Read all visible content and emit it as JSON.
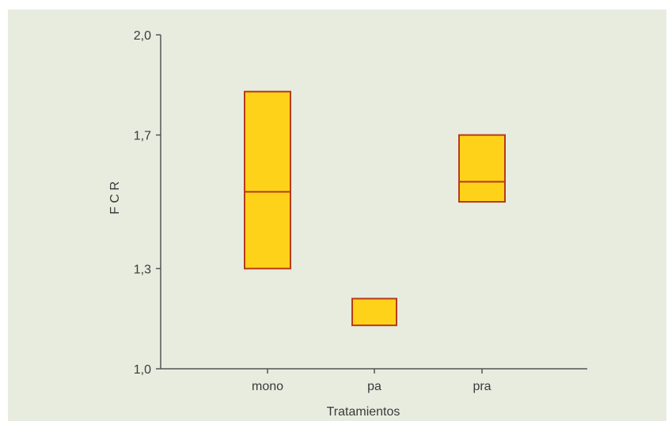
{
  "chart_data": {
    "type": "box",
    "xlabel": "Tratamientos",
    "ylabel": "F C R",
    "ylim": [
      1.0,
      2.0
    ],
    "yticks": [
      "1,0",
      "1,3",
      "1,7",
      "2,0"
    ],
    "categories": [
      "mono",
      "pa",
      "pra"
    ],
    "boxes": [
      {
        "category": "mono",
        "low": 1.3,
        "median": 1.53,
        "high": 1.83
      },
      {
        "category": "pa",
        "low": 1.13,
        "median": null,
        "high": 1.21
      },
      {
        "category": "pra",
        "low": 1.5,
        "median": 1.56,
        "high": 1.7
      }
    ],
    "grid": false,
    "legend": "none"
  },
  "colors": {
    "box_fill": "#ffd21a",
    "box_edge": "#b83a18",
    "axis": "#555555",
    "background": "#e7ecdf"
  }
}
